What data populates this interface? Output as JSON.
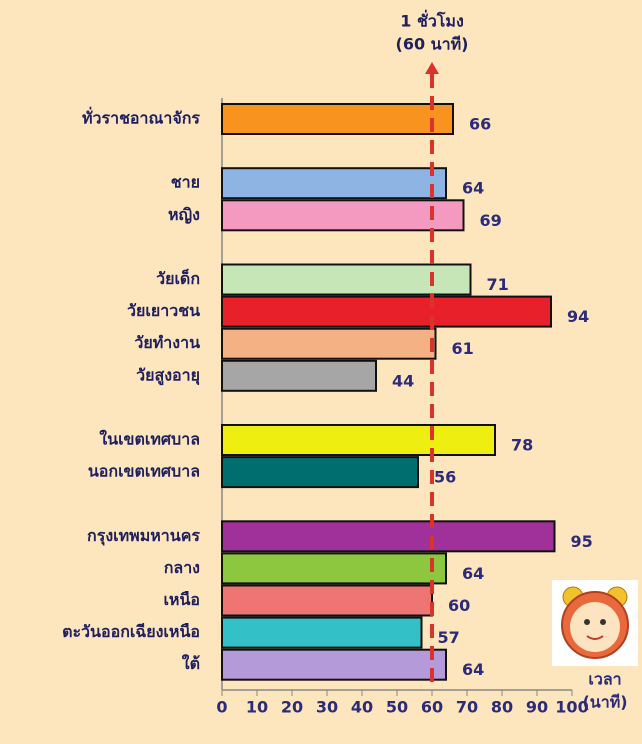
{
  "chart_data": {
    "type": "bar",
    "orientation": "horizontal",
    "categories": [
      "ทั่วราชอาณาจักร",
      null,
      "ชาย",
      "หญิง",
      null,
      "วัยเด็ก",
      "วัยเยาวชน",
      "วัยทำงาน",
      "วัยสูงอายุ",
      null,
      "ในเขตเทศบาล",
      "นอกเขตเทศบาล",
      null,
      "กรุงเทพมหานคร",
      "กลาง",
      "เหนือ",
      "ตะวันออกเฉียงเหนือ",
      "ใต้"
    ],
    "values": [
      66,
      null,
      64,
      69,
      null,
      71,
      94,
      61,
      44,
      null,
      78,
      56,
      null,
      95,
      64,
      60,
      57,
      64
    ],
    "colors": [
      "#f7931e",
      null,
      "#8db4e2",
      "#f49ac1",
      null,
      "#c6e6b8",
      "#e8202a",
      "#f4b183",
      "#a6a6a6",
      null,
      "#eeee11",
      "#006e6e",
      null,
      "#a0309a",
      "#8dc63f",
      "#ef7474",
      "#33c0c6",
      "#b49ad8"
    ],
    "xlim": [
      0,
      100
    ],
    "xticks": [
      0,
      10,
      20,
      30,
      40,
      50,
      60,
      70,
      80,
      90,
      100
    ],
    "x_label": [
      "เวลา",
      "(นาที)"
    ],
    "reference_line": {
      "value": 60,
      "label": [
        "1 ชั่วโมง",
        "(60 นาที)"
      ],
      "color": "#d9342b"
    }
  }
}
